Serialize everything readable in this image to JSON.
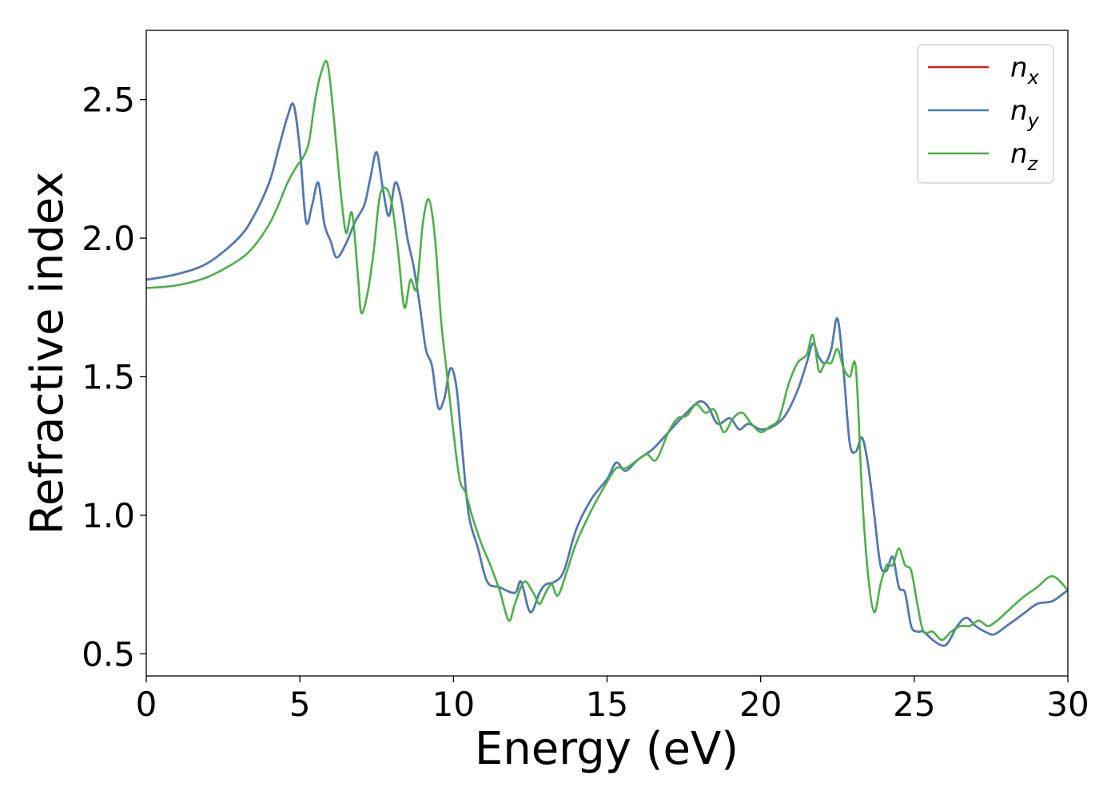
{
  "chart_data": {
    "type": "line",
    "xlabel": "Energy (eV)",
    "ylabel": "Refractive index",
    "xlim": [
      0,
      30
    ],
    "ylim": [
      0.42,
      2.75
    ],
    "xticks": [
      0,
      5,
      10,
      15,
      20,
      25,
      30
    ],
    "yticks": [
      0.5,
      1.0,
      1.5,
      2.0,
      2.5
    ],
    "grid": false,
    "legend_position": "top-right",
    "series": [
      {
        "name": "n",
        "subscript": "x",
        "color": "#e41a1c",
        "x": [
          0,
          1,
          2,
          3,
          3.5,
          4,
          4.3,
          4.6,
          4.8,
          5.0,
          5.2,
          5.4,
          5.6,
          5.8,
          6.0,
          6.2,
          6.5,
          6.8,
          7.1,
          7.3,
          7.5,
          7.7,
          7.9,
          8.1,
          8.3,
          8.5,
          8.7,
          8.9,
          9.1,
          9.3,
          9.5,
          9.7,
          9.9,
          10.1,
          10.3,
          10.5,
          10.8,
          11.1,
          11.5,
          12.0,
          12.2,
          12.5,
          12.8,
          13.0,
          13.3,
          13.6,
          14.0,
          14.5,
          15.0,
          15.3,
          15.6,
          16.0,
          16.5,
          17.0,
          17.5,
          18.0,
          18.3,
          18.6,
          19.0,
          19.3,
          19.6,
          20.0,
          20.4,
          20.8,
          21.2,
          21.5,
          21.7,
          21.9,
          22.1,
          22.3,
          22.5,
          22.7,
          22.9,
          23.1,
          23.3,
          23.5,
          23.7,
          23.9,
          24.1,
          24.3,
          24.5,
          24.7,
          24.9,
          25.1,
          25.3,
          25.6,
          25.9,
          26.1,
          26.4,
          26.7,
          27.0,
          27.3,
          27.6,
          28.0,
          28.5,
          29.0,
          29.5,
          30.0
        ],
        "y": [
          1.85,
          1.87,
          1.91,
          2.0,
          2.08,
          2.2,
          2.32,
          2.44,
          2.48,
          2.32,
          2.06,
          2.12,
          2.2,
          2.05,
          1.99,
          1.93,
          1.98,
          2.06,
          2.12,
          2.22,
          2.31,
          2.18,
          2.08,
          2.2,
          2.14,
          2.0,
          1.9,
          1.76,
          1.6,
          1.54,
          1.39,
          1.42,
          1.53,
          1.46,
          1.22,
          1.0,
          0.88,
          0.76,
          0.74,
          0.72,
          0.76,
          0.65,
          0.72,
          0.75,
          0.76,
          0.8,
          0.95,
          1.06,
          1.13,
          1.19,
          1.16,
          1.2,
          1.24,
          1.3,
          1.36,
          1.41,
          1.39,
          1.33,
          1.35,
          1.31,
          1.33,
          1.31,
          1.32,
          1.36,
          1.45,
          1.55,
          1.62,
          1.57,
          1.55,
          1.6,
          1.71,
          1.52,
          1.26,
          1.23,
          1.28,
          1.18,
          1.0,
          0.82,
          0.8,
          0.85,
          0.74,
          0.72,
          0.6,
          0.58,
          0.58,
          0.55,
          0.53,
          0.54,
          0.6,
          0.63,
          0.6,
          0.58,
          0.57,
          0.6,
          0.64,
          0.68,
          0.69,
          0.73
        ]
      },
      {
        "name": "n",
        "subscript": "y",
        "color": "#4a7cb6",
        "x": [
          0,
          1,
          2,
          3,
          3.5,
          4,
          4.3,
          4.6,
          4.8,
          5.0,
          5.2,
          5.4,
          5.6,
          5.8,
          6.0,
          6.2,
          6.5,
          6.8,
          7.1,
          7.3,
          7.5,
          7.7,
          7.9,
          8.1,
          8.3,
          8.5,
          8.7,
          8.9,
          9.1,
          9.3,
          9.5,
          9.7,
          9.9,
          10.1,
          10.3,
          10.5,
          10.8,
          11.1,
          11.5,
          12.0,
          12.2,
          12.5,
          12.8,
          13.0,
          13.3,
          13.6,
          14.0,
          14.5,
          15.0,
          15.3,
          15.6,
          16.0,
          16.5,
          17.0,
          17.5,
          18.0,
          18.3,
          18.6,
          19.0,
          19.3,
          19.6,
          20.0,
          20.4,
          20.8,
          21.2,
          21.5,
          21.7,
          21.9,
          22.1,
          22.3,
          22.5,
          22.7,
          22.9,
          23.1,
          23.3,
          23.5,
          23.7,
          23.9,
          24.1,
          24.3,
          24.5,
          24.7,
          24.9,
          25.1,
          25.3,
          25.6,
          25.9,
          26.1,
          26.4,
          26.7,
          27.0,
          27.3,
          27.6,
          28.0,
          28.5,
          29.0,
          29.5,
          30.0
        ],
        "y": [
          1.85,
          1.87,
          1.91,
          2.0,
          2.08,
          2.2,
          2.32,
          2.44,
          2.48,
          2.32,
          2.06,
          2.12,
          2.2,
          2.05,
          1.99,
          1.93,
          1.98,
          2.06,
          2.12,
          2.22,
          2.31,
          2.18,
          2.08,
          2.2,
          2.14,
          2.0,
          1.9,
          1.76,
          1.6,
          1.54,
          1.39,
          1.42,
          1.53,
          1.46,
          1.22,
          1.0,
          0.88,
          0.76,
          0.74,
          0.72,
          0.76,
          0.65,
          0.72,
          0.75,
          0.76,
          0.8,
          0.95,
          1.06,
          1.13,
          1.19,
          1.16,
          1.2,
          1.24,
          1.3,
          1.36,
          1.41,
          1.39,
          1.33,
          1.35,
          1.31,
          1.33,
          1.31,
          1.32,
          1.36,
          1.45,
          1.55,
          1.62,
          1.57,
          1.55,
          1.6,
          1.71,
          1.52,
          1.26,
          1.23,
          1.28,
          1.18,
          1.0,
          0.82,
          0.8,
          0.85,
          0.74,
          0.72,
          0.6,
          0.58,
          0.58,
          0.55,
          0.53,
          0.54,
          0.6,
          0.63,
          0.6,
          0.58,
          0.57,
          0.6,
          0.64,
          0.68,
          0.69,
          0.73
        ]
      },
      {
        "name": "n",
        "subscript": "z",
        "color": "#4daf4a",
        "x": [
          0,
          1,
          2,
          3,
          3.5,
          4,
          4.3,
          4.6,
          4.9,
          5.1,
          5.3,
          5.5,
          5.7,
          5.9,
          6.1,
          6.3,
          6.5,
          6.7,
          6.9,
          7.0,
          7.2,
          7.4,
          7.6,
          7.8,
          8.0,
          8.2,
          8.4,
          8.6,
          8.8,
          9.0,
          9.2,
          9.4,
          9.6,
          9.8,
          10.0,
          10.2,
          10.4,
          10.6,
          10.9,
          11.2,
          11.5,
          11.8,
          12.0,
          12.3,
          12.6,
          12.8,
          13.0,
          13.2,
          13.4,
          13.7,
          14.0,
          14.5,
          15.0,
          15.3,
          15.6,
          16.0,
          16.3,
          16.6,
          17.0,
          17.3,
          17.6,
          17.9,
          18.2,
          18.5,
          18.8,
          19.1,
          19.4,
          19.7,
          20.0,
          20.3,
          20.6,
          20.9,
          21.2,
          21.5,
          21.7,
          21.9,
          22.1,
          22.3,
          22.5,
          22.7,
          22.9,
          23.1,
          23.3,
          23.5,
          23.7,
          23.9,
          24.1,
          24.3,
          24.5,
          24.7,
          24.9,
          25.1,
          25.3,
          25.6,
          25.9,
          26.2,
          26.5,
          26.8,
          27.1,
          27.4,
          27.7,
          28.0,
          28.5,
          29.0,
          29.5,
          30.0
        ],
        "y": [
          1.82,
          1.83,
          1.86,
          1.92,
          1.97,
          2.05,
          2.12,
          2.2,
          2.26,
          2.29,
          2.35,
          2.5,
          2.6,
          2.63,
          2.44,
          2.2,
          2.02,
          2.09,
          1.85,
          1.73,
          1.8,
          1.95,
          2.15,
          2.18,
          2.12,
          1.95,
          1.75,
          1.85,
          1.82,
          2.05,
          2.14,
          2.0,
          1.7,
          1.5,
          1.3,
          1.13,
          1.08,
          1.0,
          0.9,
          0.82,
          0.73,
          0.62,
          0.68,
          0.76,
          0.72,
          0.68,
          0.72,
          0.75,
          0.71,
          0.8,
          0.9,
          1.02,
          1.12,
          1.17,
          1.17,
          1.2,
          1.22,
          1.2,
          1.3,
          1.35,
          1.36,
          1.4,
          1.37,
          1.38,
          1.3,
          1.35,
          1.37,
          1.33,
          1.3,
          1.32,
          1.35,
          1.47,
          1.55,
          1.58,
          1.65,
          1.52,
          1.55,
          1.55,
          1.6,
          1.53,
          1.5,
          1.53,
          1.08,
          0.78,
          0.65,
          0.75,
          0.82,
          0.82,
          0.88,
          0.82,
          0.8,
          0.68,
          0.58,
          0.58,
          0.55,
          0.58,
          0.6,
          0.6,
          0.62,
          0.6,
          0.62,
          0.65,
          0.7,
          0.74,
          0.78,
          0.73
        ]
      }
    ]
  }
}
